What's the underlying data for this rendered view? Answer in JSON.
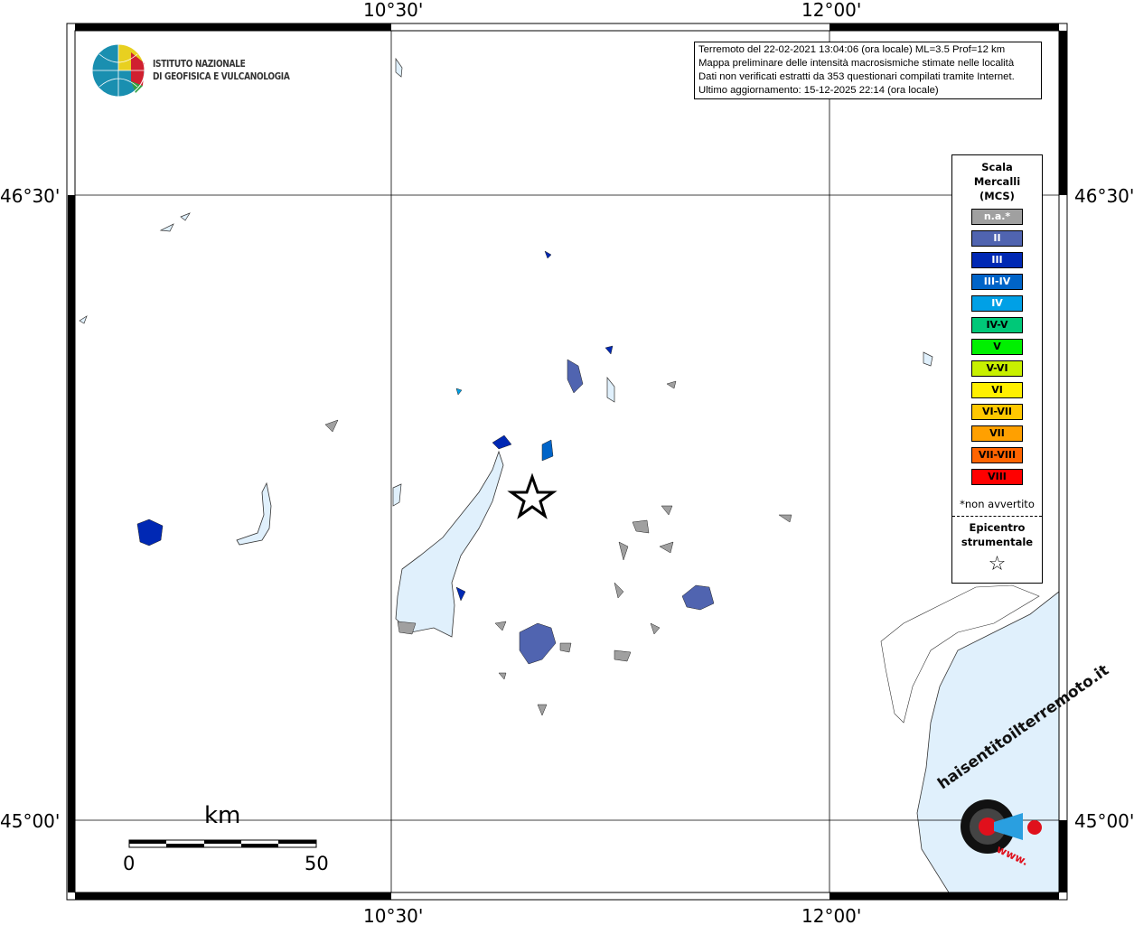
{
  "axes": {
    "lon_ticks": [
      "10°30'",
      "12°00'"
    ],
    "lat_ticks": [
      "46°30'",
      "45°00'"
    ]
  },
  "logo": {
    "line1": "ISTITUTO NAZIONALE",
    "line2": "DI GEOFISICA E VULCANOLOGIA"
  },
  "info": {
    "line1": "Terremoto del 22-02-2021 13:04:06 (ora locale) ML=3.5 Prof=12 km",
    "line2": "Mappa preliminare delle intensità macrosismiche stimate nelle località",
    "line3": "Dati non verificati estratti da 353 questionari compilati tramite Internet.",
    "line4": "Ultimo aggiornamento: 15-12-2025 22:14 (ora locale)"
  },
  "legend": {
    "title1": "Scala",
    "title2": "Mercalli",
    "title3": "(MCS)",
    "items": [
      {
        "label": "n.a.*",
        "color": "#a0a0a0",
        "text": "#fff"
      },
      {
        "label": "II",
        "color": "#5064b0",
        "text": "#fff"
      },
      {
        "label": "III",
        "color": "#0028b4",
        "text": "#fff"
      },
      {
        "label": "III-IV",
        "color": "#0064c8",
        "text": "#fff"
      },
      {
        "label": "IV",
        "color": "#00a0e6",
        "text": "#fff"
      },
      {
        "label": "IV-V",
        "color": "#00c878",
        "text": "#000"
      },
      {
        "label": "V",
        "color": "#00f000",
        "text": "#000"
      },
      {
        "label": "V-VI",
        "color": "#c8f000",
        "text": "#000"
      },
      {
        "label": "VI",
        "color": "#fff000",
        "text": "#000"
      },
      {
        "label": "VI-VII",
        "color": "#ffc800",
        "text": "#000"
      },
      {
        "label": "VII",
        "color": "#ffa000",
        "text": "#000"
      },
      {
        "label": "VII-VIII",
        "color": "#ff6400",
        "text": "#000"
      },
      {
        "label": "VIII",
        "color": "#ff0000",
        "text": "#000"
      }
    ],
    "note": "*non avvertito",
    "epicenter1": "Epicentro",
    "epicenter2": "strumentale",
    "star": "☆"
  },
  "scalebar": {
    "unit": "km",
    "min": "0",
    "max": "50"
  },
  "watermark": {
    "text": "haisentitoilterremoto.it",
    "url": "www."
  }
}
